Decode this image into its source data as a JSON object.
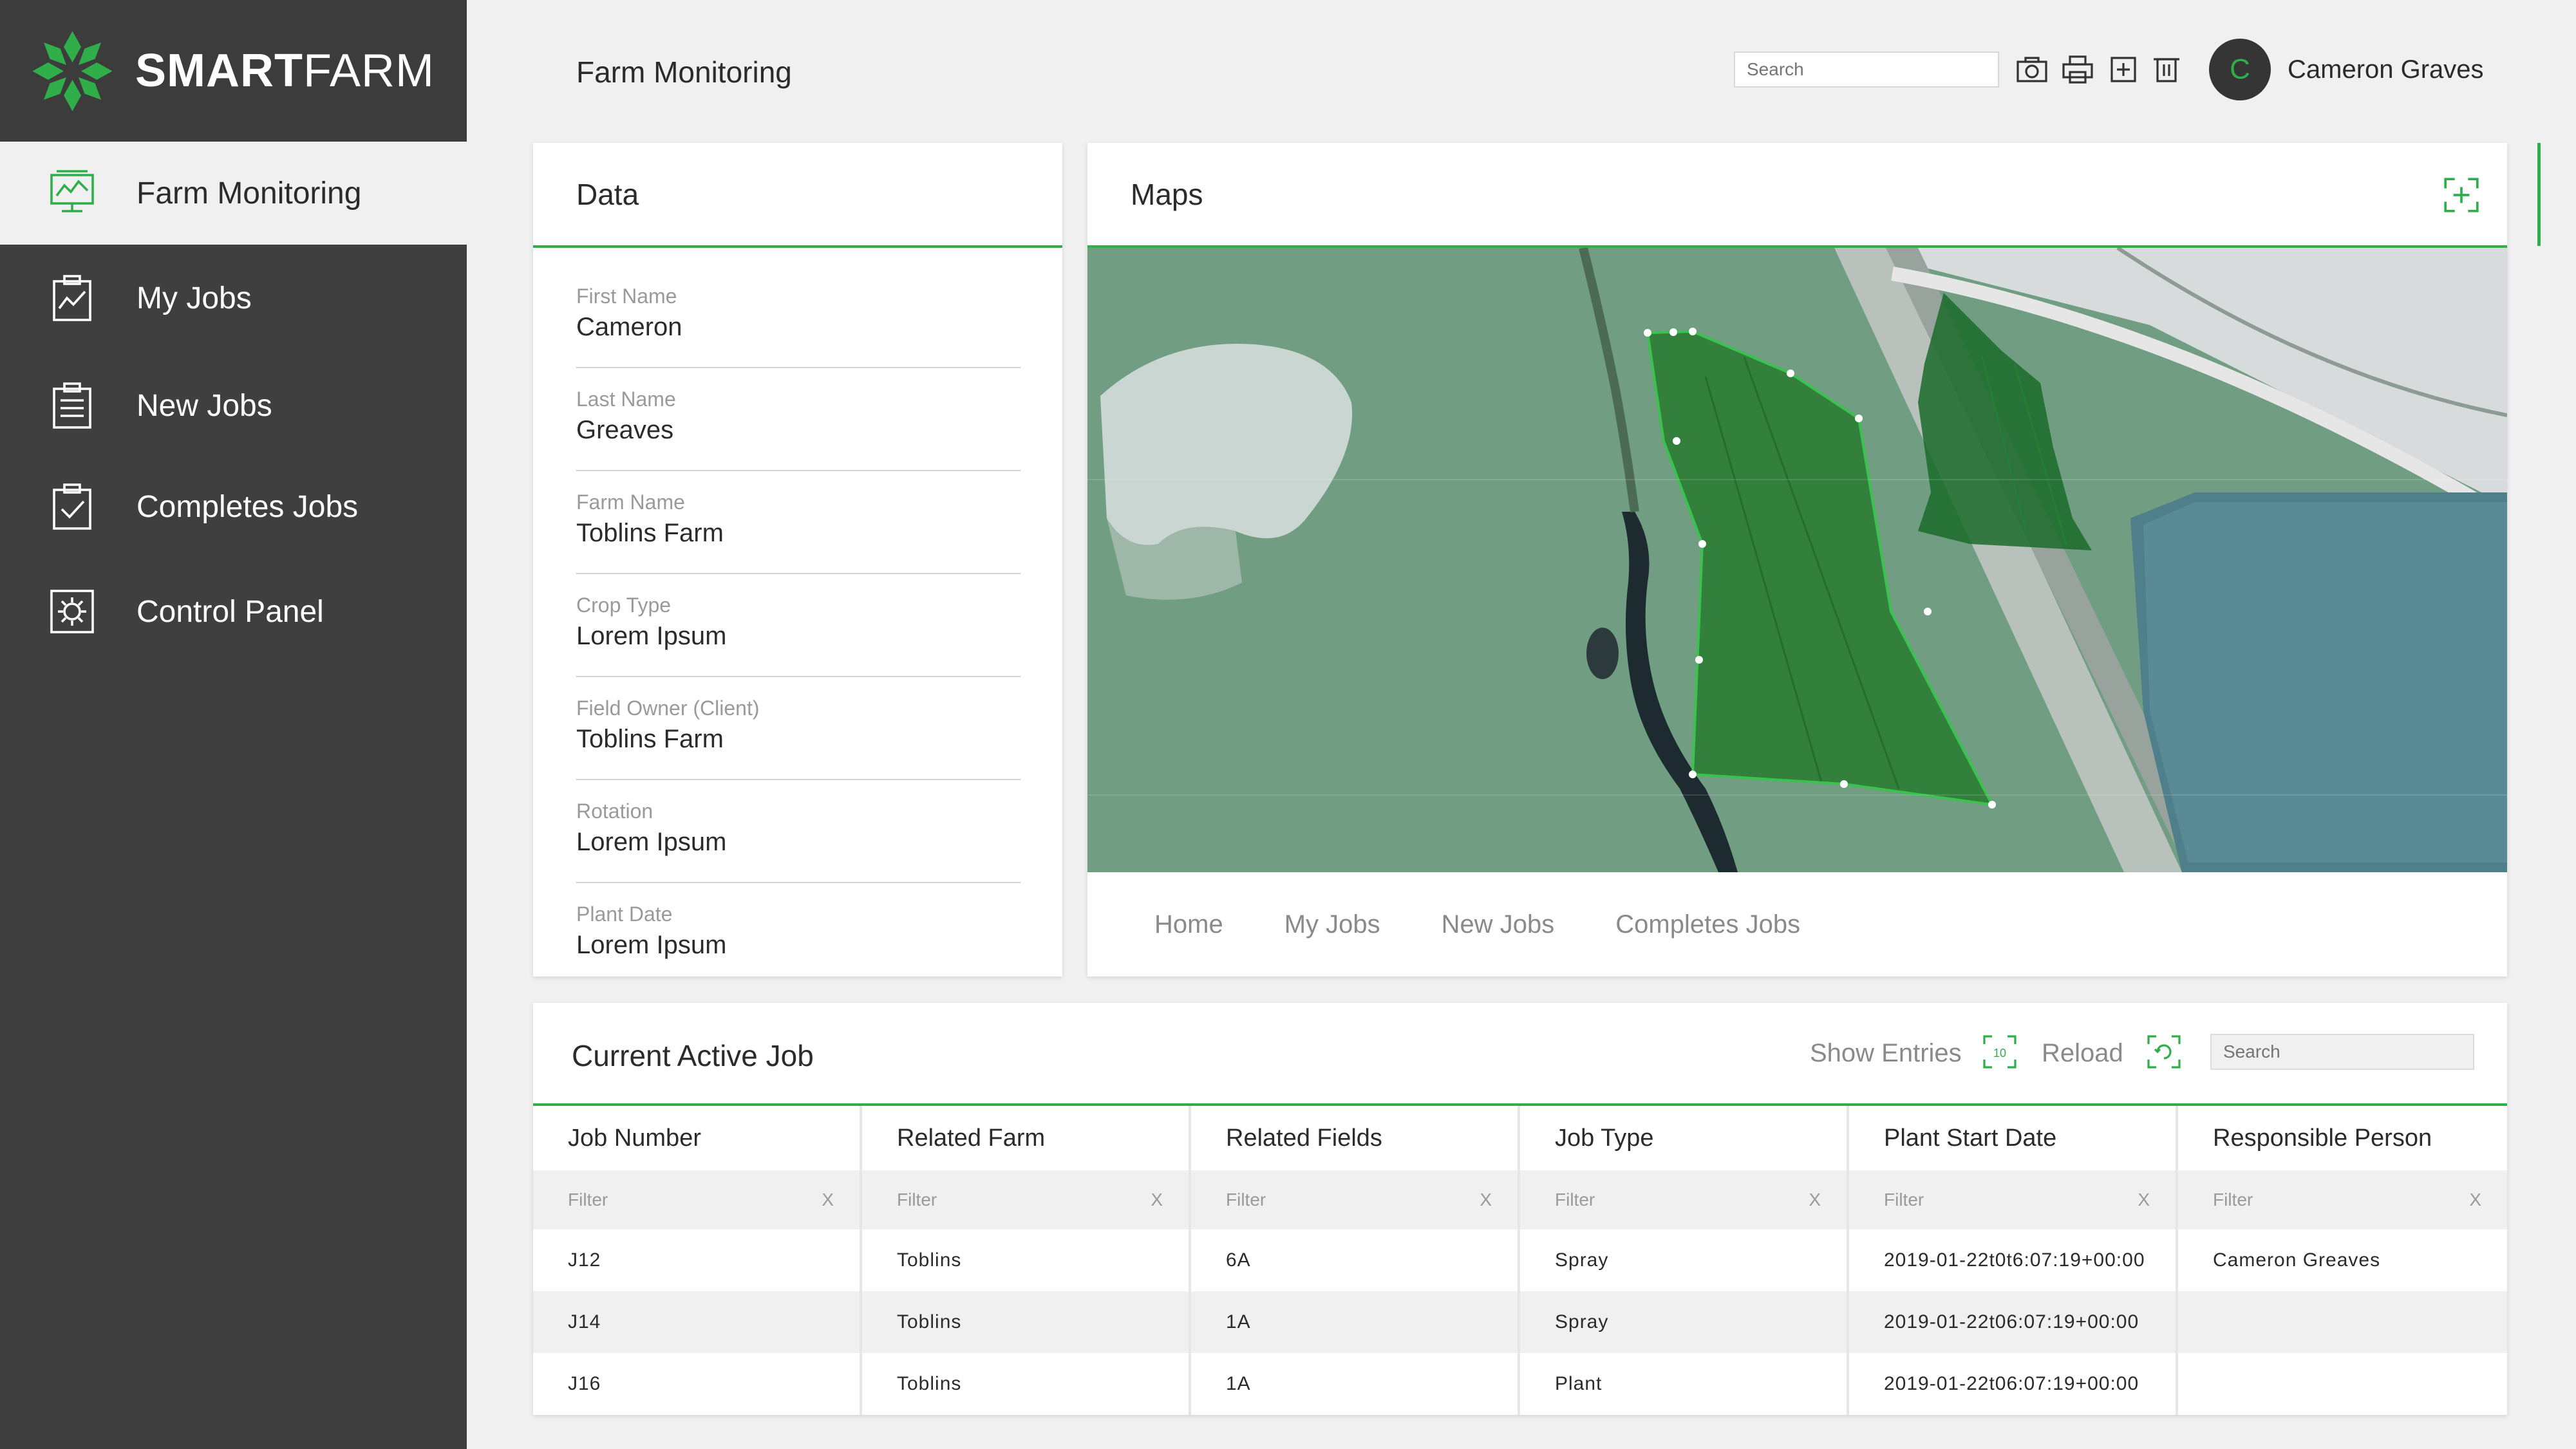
{
  "brand": {
    "name_bold": "SMART",
    "name_light": "FARM",
    "accent": "#2fae49"
  },
  "sidebar": {
    "items": [
      {
        "label": "Farm Monitoring",
        "icon": "monitor-chart-icon",
        "active": true
      },
      {
        "label": "My Jobs",
        "icon": "clipboard-chart-icon"
      },
      {
        "label": "New Jobs",
        "icon": "clipboard-list-icon"
      },
      {
        "label": "Completes Jobs",
        "icon": "clipboard-check-icon"
      },
      {
        "label": "Control Panel",
        "icon": "gear-icon"
      }
    ]
  },
  "header": {
    "title": "Farm Monitoring",
    "search_placeholder": "Search",
    "tools": [
      "camera-icon",
      "printer-icon",
      "add-square-icon",
      "trash-icon"
    ],
    "user": {
      "initial": "C",
      "name": "Cameron Graves"
    }
  },
  "data_card": {
    "title": "Data",
    "fields": [
      {
        "label": "First Name",
        "value": "Cameron"
      },
      {
        "label": "Last Name",
        "value": "Greaves"
      },
      {
        "label": "Farm Name",
        "value": "Toblins Farm"
      },
      {
        "label": "Crop Type",
        "value": "Lorem Ipsum"
      },
      {
        "label": "Field Owner (Client)",
        "value": "Toblins Farm"
      },
      {
        "label": "Rotation",
        "value": "Lorem Ipsum"
      },
      {
        "label": "Plant Date",
        "value": "Lorem Ipsum"
      }
    ]
  },
  "maps_card": {
    "title": "Maps",
    "tabs": [
      "Home",
      "My Jobs",
      "New Jobs",
      "Completes Jobs"
    ]
  },
  "job_card": {
    "title": "Current Active Job",
    "show_entries": "Show Entries",
    "entries_count": "10",
    "reload": "Reload",
    "search_placeholder": "Search",
    "filter_placeholder": "Filter",
    "filter_clear": "X",
    "columns": [
      "Job Number",
      "Related Farm",
      "Related Fields",
      "Job Type",
      "Plant Start Date",
      "Responsible Person"
    ],
    "rows": [
      [
        "J12",
        "Toblins",
        "6A",
        "Spray",
        "2019-01-22t0t6:07:19+00:00",
        "Cameron Greaves"
      ],
      [
        "J14",
        "Toblins",
        "1A",
        "Spray",
        "2019-01-22t06:07:19+00:00",
        ""
      ],
      [
        "J16",
        "Toblins",
        "1A",
        "Plant",
        "2019-01-22t06:07:19+00:00",
        ""
      ]
    ]
  }
}
